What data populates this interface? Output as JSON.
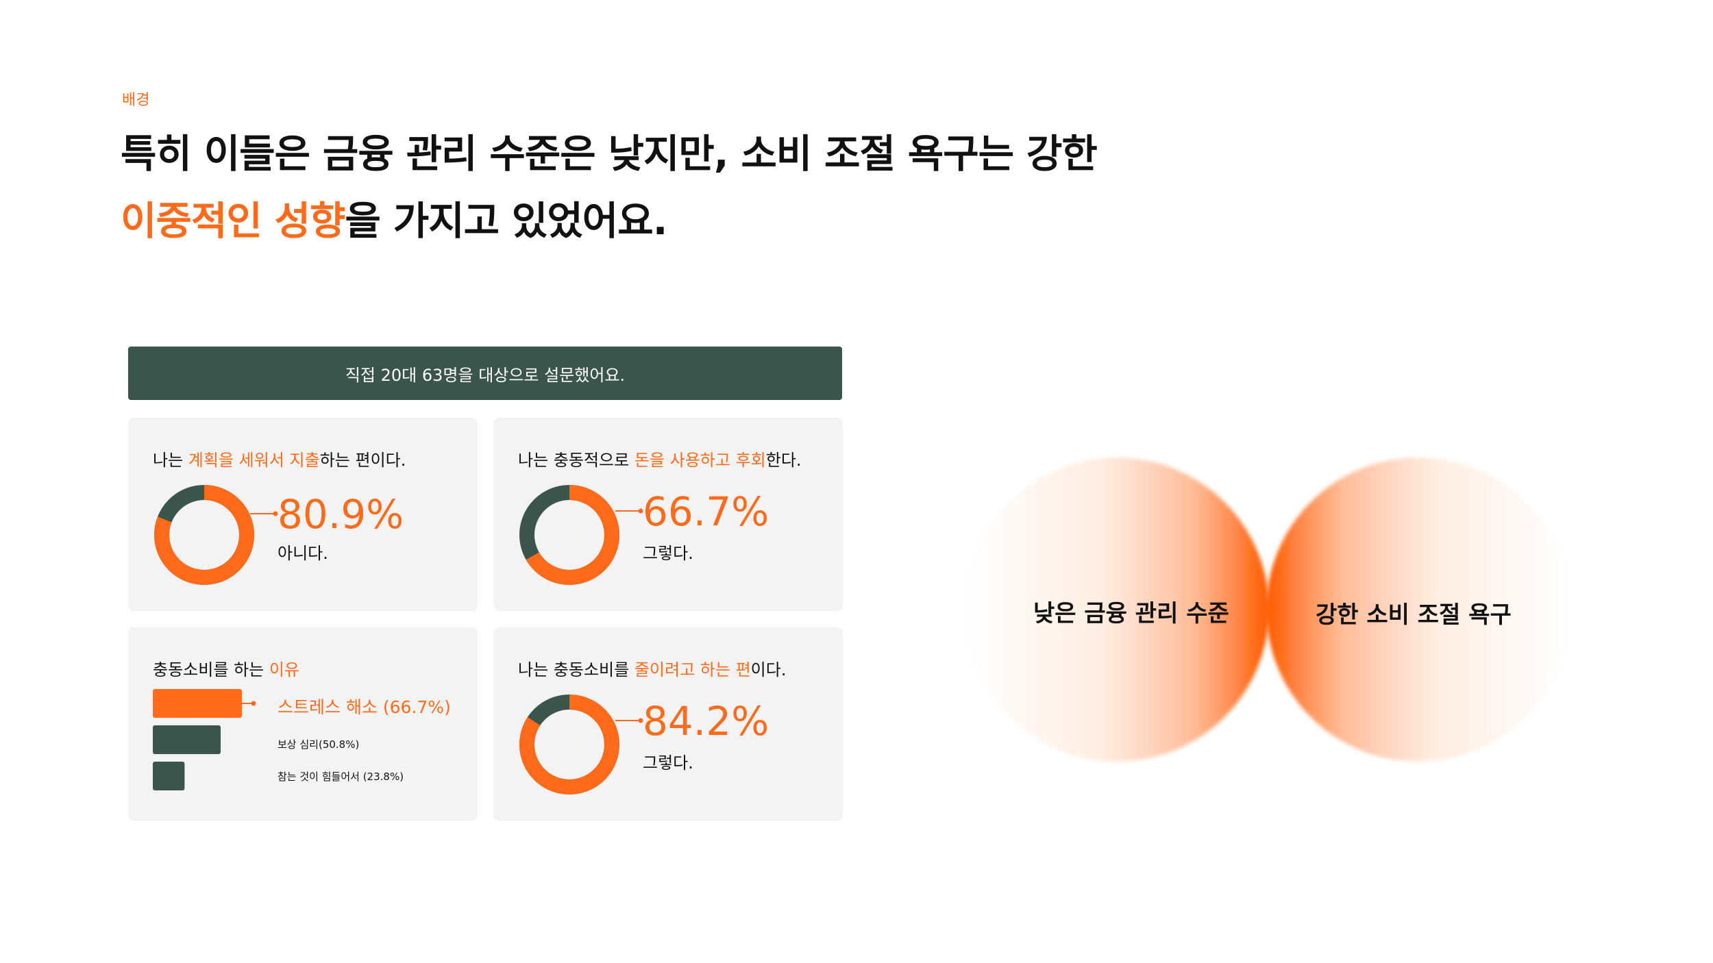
{
  "header": {
    "eyebrow": "배경",
    "line1": "특히 이들은 금융 관리 수준은 낮지만, 소비 조절 욕구는 강한",
    "line2_highlight": "이중적인 성향",
    "line2_rest": "을 가지고 있었어요."
  },
  "survey_banner": "직접 20대 63명을 대상으로 설문했어요.",
  "colors": {
    "accent": "#ff6b1a",
    "dark_green": "#3b554c",
    "card_bg": "#f3f3f3"
  },
  "cards": {
    "plan": {
      "q_pre": "나는 ",
      "q_hl": "계획을 세워서 지출",
      "q_post": "하는 편이다.",
      "percent": "80.9%",
      "answer": "아니다.",
      "value": 80.9
    },
    "impulse": {
      "q_pre": "나는 충동적으로 ",
      "q_hl": "돈을 사용하고 후회",
      "q_post": "한다.",
      "percent": "66.7%",
      "answer": "그렇다.",
      "value": 66.7
    },
    "reason": {
      "q_pre": "충동소비를 하는 ",
      "q_hl": "이유",
      "items": [
        {
          "label": "스트레스 해소 (66.7%)",
          "value": 66.7
        },
        {
          "label": "보상 심리(50.8%)",
          "value": 50.8
        },
        {
          "label": "참는 것이 힘들어서 (23.8%)",
          "value": 23.8
        }
      ]
    },
    "reduce": {
      "q_pre": "나는 충동소비를 ",
      "q_hl": "줄이려고 하는 편",
      "q_post": "이다.",
      "percent": "84.2%",
      "answer": "그렇다.",
      "value": 84.2
    }
  },
  "circles": {
    "left_label": "낮은 금융 관리 수준",
    "right_label": "강한 소비 조절 욕구"
  }
}
